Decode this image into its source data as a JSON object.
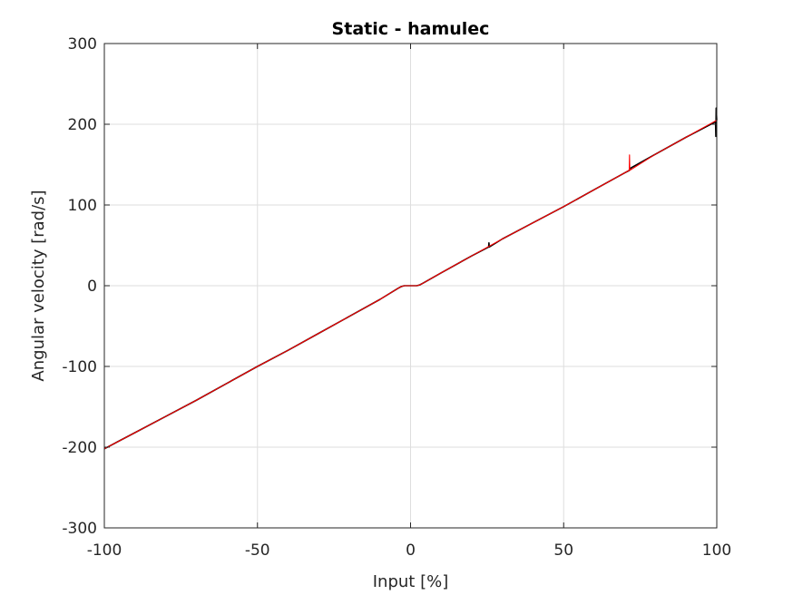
{
  "chart_data": {
    "type": "line",
    "title": "Static - hamulec",
    "xlabel": "Input [%]",
    "ylabel": "Angular velocity [rad/s]",
    "xlim": [
      -100,
      100
    ],
    "ylim": [
      -300,
      300
    ],
    "xticks": [
      -100,
      -50,
      0,
      50,
      100
    ],
    "yticks": [
      -300,
      -200,
      -100,
      0,
      100,
      200,
      300
    ],
    "xtick_labels": [
      "-100",
      "-50",
      "0",
      "50",
      "100"
    ],
    "ytick_labels": [
      "-300",
      "-200",
      "-100",
      "0",
      "100",
      "200",
      "300"
    ],
    "grid": true,
    "series": [
      {
        "color": "#000000",
        "x": [
          -100,
          -90,
          -80,
          -70,
          -60,
          -50,
          -40,
          -30,
          -20,
          -10,
          -4,
          -3,
          -2,
          0,
          2,
          3,
          4,
          10,
          20,
          25.5,
          25.6,
          25.7,
          30,
          40,
          50,
          60,
          70,
          71.5,
          72,
          80,
          90,
          99.6,
          99.7,
          99.8,
          100
        ],
        "y": [
          -202,
          -182,
          -162,
          -142,
          -121,
          -100,
          -80,
          -59,
          -38,
          -17,
          -3,
          -1,
          0,
          0,
          0,
          1,
          3,
          16,
          37,
          48,
          53,
          48,
          58,
          78,
          98,
          119,
          140,
          143,
          146,
          163,
          184,
          203,
          185,
          220,
          205
        ]
      },
      {
        "color": "#ff0000",
        "x": [
          -100,
          -90,
          -80,
          -70,
          -60,
          -50,
          -40,
          -30,
          -20,
          -10,
          -4,
          -3,
          -2,
          0,
          2,
          3,
          4,
          10,
          20,
          30,
          40,
          50,
          60,
          70,
          71.4,
          71.5,
          71.6,
          80,
          90,
          100
        ],
        "y": [
          -202,
          -182,
          -162,
          -142,
          -121,
          -100,
          -80,
          -59,
          -38,
          -17,
          -3,
          -1,
          0,
          0,
          0,
          1,
          3,
          16,
          37,
          58,
          78,
          98,
          119,
          140,
          143,
          162,
          143,
          163,
          184,
          205
        ]
      }
    ]
  }
}
